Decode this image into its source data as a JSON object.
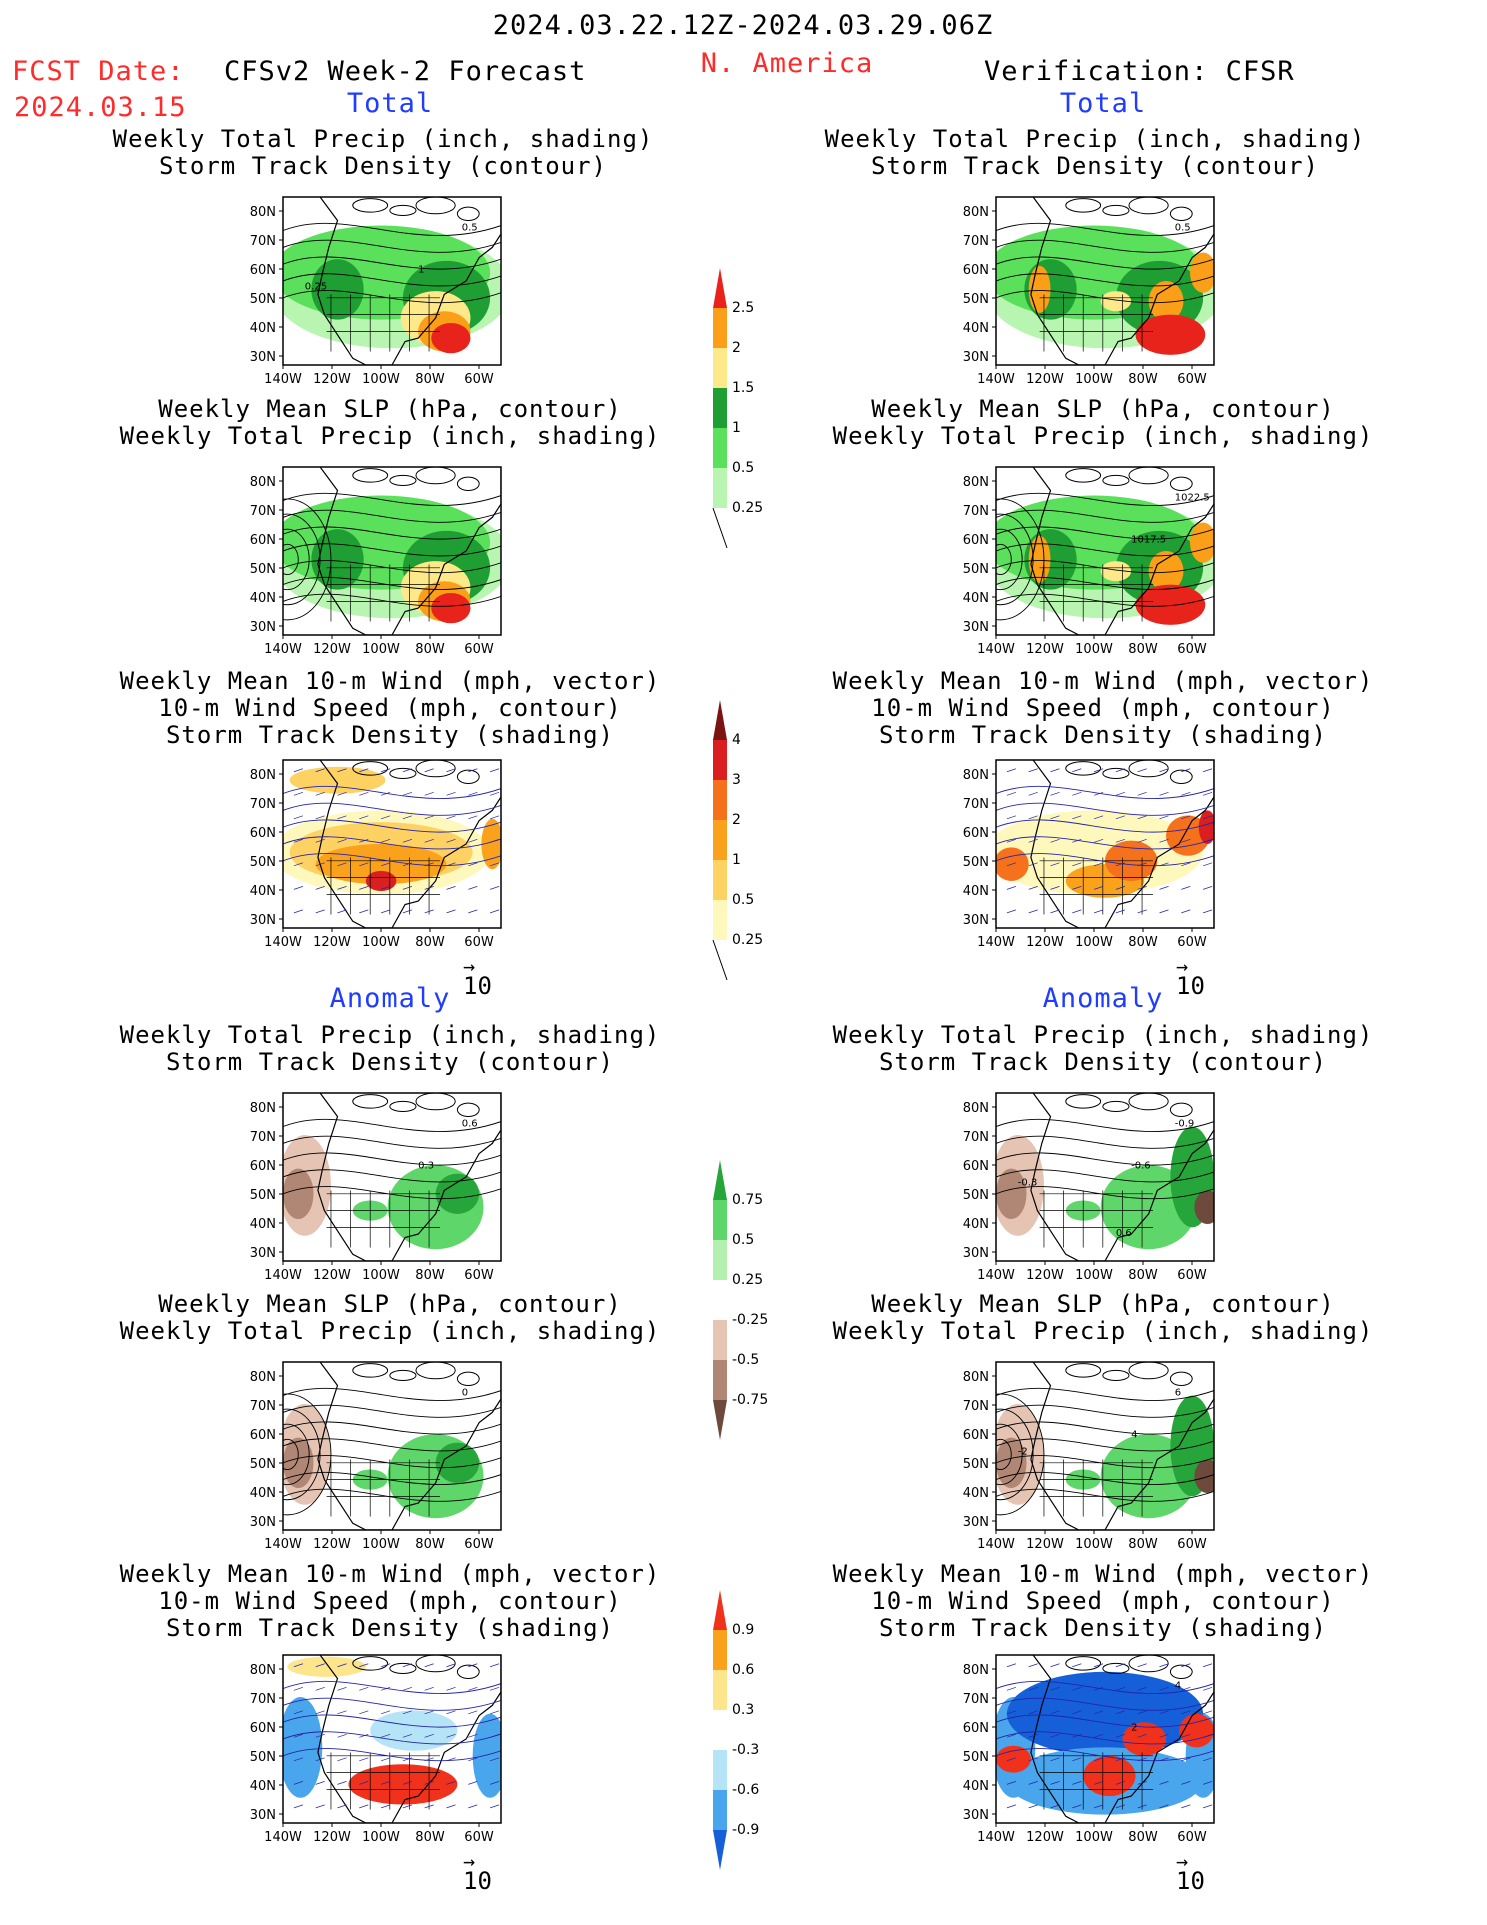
{
  "header": {
    "period": "2024.03.22.12Z-2024.03.29.06Z",
    "region": "N. America",
    "fcst_label": "FCST Date:",
    "fcst_date": "2024.03.15",
    "model": "CFSv2 Week-2 Forecast",
    "verification": "Verification: CFSR"
  },
  "sections": {
    "total": "Total",
    "anomaly": "Anomaly"
  },
  "titles": {
    "precip_track": [
      "Weekly Total Precip (inch, shading)",
      "Storm Track Density (contour)"
    ],
    "slp_precip": [
      "Weekly Mean SLP (hPa, contour)",
      "Weekly Total Precip (inch, shading)"
    ],
    "wind_track": [
      "Weekly Mean 10-m Wind (mph, vector)",
      "10-m Wind Speed (mph, contour)",
      "Storm Track Density (shading)"
    ]
  },
  "axes": {
    "lat": [
      "80N",
      "70N",
      "60N",
      "50N",
      "40N",
      "30N"
    ],
    "lon": [
      "140W",
      "120W",
      "100W",
      "80W",
      "60W"
    ]
  },
  "vector_ref": "10",
  "contour_labels": {
    "p1l": [
      "0.5",
      "1",
      "0.25"
    ],
    "p1r": [
      "0.5"
    ],
    "p2r": [
      "1022.5",
      "1017.5"
    ],
    "p4l": [
      "0.6",
      "0.3"
    ],
    "p4r": [
      "-0.9",
      "-0.6",
      "-0.3",
      "0.6"
    ],
    "p5l": [
      "0"
    ],
    "p5r": [
      "6",
      "4",
      "-2"
    ],
    "p6r": [
      "4",
      "2"
    ]
  },
  "colorbars": [
    {
      "id": "cb1",
      "labels": [
        "2.5",
        "2",
        "1.5",
        "1",
        "0.5",
        "0.25"
      ],
      "colors": [
        "#e8231c",
        "#fb9e18",
        "#fde88a",
        "#1f9e33",
        "#5be05b",
        "#b8f5b0"
      ]
    },
    {
      "id": "cb2",
      "labels": [
        "4",
        "3",
        "2",
        "1",
        "0.5",
        "0.25"
      ],
      "colors": [
        "#7b1313",
        "#d91f1f",
        "#f5711b",
        "#fba21c",
        "#fdd263",
        "#fef8bd"
      ]
    },
    {
      "id": "cb3",
      "labels": [
        "0.75",
        "0.5",
        "0.25",
        "-0.25",
        "-0.5",
        "-0.75"
      ],
      "colors": [
        "#26a63a",
        "#5fd66a",
        "#b3f0b0",
        "#ffffff",
        "#e5c4b4",
        "#b08675",
        "#6e4a3c"
      ]
    },
    {
      "id": "cb4",
      "labels": [
        "0.9",
        "0.6",
        "0.3",
        "-0.3",
        "-0.6",
        "-0.9"
      ],
      "colors": [
        "#f0321c",
        "#fba21c",
        "#fde58c",
        "#ffffff",
        "#b4e4f6",
        "#4aa6ec",
        "#1560d8"
      ]
    }
  ],
  "colors": {
    "land_line": "#000000",
    "contour_blue": "#2424a8",
    "frame": "#000000"
  }
}
